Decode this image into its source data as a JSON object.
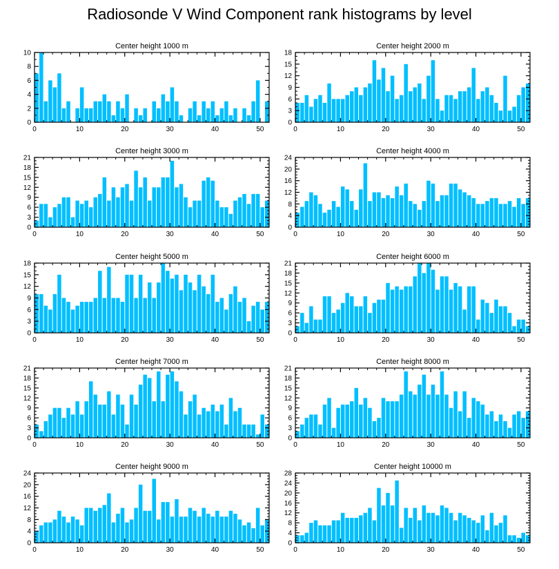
{
  "title": "Radiosonde V Wind Component rank histograms by level",
  "colors": {
    "bar": "#00bfff",
    "axis": "#000000"
  },
  "chart_data": [
    {
      "type": "bar",
      "title": "Center height 1000 m",
      "xlim": [
        0,
        52
      ],
      "ylim": [
        0,
        10
      ],
      "yticks": [
        0,
        2,
        4,
        6,
        8,
        10
      ],
      "xticks": [
        0,
        10,
        20,
        30,
        40,
        50
      ],
      "values": [
        7,
        10,
        3,
        6,
        5,
        7,
        2,
        3,
        0,
        2,
        5,
        2,
        2,
        3,
        3,
        4,
        3,
        1,
        3,
        2,
        4,
        0,
        2,
        1,
        2,
        0,
        3,
        2,
        4,
        3,
        5,
        3,
        1,
        0,
        2,
        3,
        1,
        3,
        2,
        3,
        1,
        2,
        3,
        1,
        2,
        0,
        2,
        1,
        3,
        6,
        0,
        3
      ]
    },
    {
      "type": "bar",
      "title": "Center height 2000 m",
      "xlim": [
        0,
        52
      ],
      "ylim": [
        0,
        18
      ],
      "yticks": [
        0,
        3,
        6,
        9,
        12,
        15,
        18
      ],
      "xticks": [
        0,
        10,
        20,
        30,
        40,
        50
      ],
      "values": [
        5,
        5,
        7,
        4,
        6,
        7,
        5,
        10,
        6,
        6,
        6,
        7,
        8,
        9,
        7,
        9,
        10,
        16,
        11,
        14,
        8,
        12,
        6,
        7,
        15,
        8,
        9,
        10,
        6,
        12,
        16,
        6,
        3,
        7,
        7,
        6,
        8,
        8,
        9,
        14,
        6,
        8,
        9,
        7,
        5,
        3,
        12,
        3,
        4,
        7,
        9,
        10
      ]
    },
    {
      "type": "bar",
      "title": "Center height 3000 m",
      "xlim": [
        0,
        52
      ],
      "ylim": [
        0,
        21
      ],
      "yticks": [
        0,
        3,
        6,
        9,
        12,
        15,
        18,
        21
      ],
      "xticks": [
        0,
        10,
        20,
        30,
        40,
        50
      ],
      "values": [
        2,
        7,
        7,
        3,
        6,
        7,
        9,
        9,
        3,
        8,
        7,
        8,
        6,
        9,
        10,
        15,
        8,
        12,
        9,
        12,
        13,
        8,
        17,
        12,
        15,
        8,
        12,
        12,
        15,
        15,
        20,
        12,
        13,
        9,
        6,
        8,
        8,
        14,
        15,
        14,
        8,
        6,
        6,
        4,
        8,
        9,
        10,
        7,
        10,
        10,
        6,
        8
      ]
    },
    {
      "type": "bar",
      "title": "Center height 4000 m",
      "xlim": [
        0,
        52
      ],
      "ylim": [
        0,
        24
      ],
      "yticks": [
        0,
        4,
        8,
        12,
        16,
        20,
        24
      ],
      "xticks": [
        0,
        10,
        20,
        30,
        40,
        50
      ],
      "values": [
        5,
        7,
        9,
        12,
        11,
        8,
        5,
        6,
        9,
        7,
        14,
        13,
        9,
        6,
        13,
        22,
        9,
        12,
        12,
        10,
        11,
        10,
        14,
        11,
        15,
        9,
        8,
        6,
        9,
        16,
        15,
        9,
        11,
        11,
        15,
        15,
        13,
        12,
        11,
        10,
        8,
        8,
        9,
        10,
        10,
        8,
        8,
        9,
        7,
        10,
        8,
        10
      ]
    },
    {
      "type": "bar",
      "title": "Center height 5000 m",
      "xlim": [
        0,
        52
      ],
      "ylim": [
        0,
        18
      ],
      "yticks": [
        0,
        3,
        6,
        9,
        12,
        15,
        18
      ],
      "xticks": [
        0,
        10,
        20,
        30,
        40,
        50
      ],
      "values": [
        10,
        10,
        7,
        6,
        10,
        15,
        9,
        8,
        6,
        7,
        8,
        8,
        8,
        9,
        16,
        9,
        17,
        9,
        9,
        8,
        15,
        15,
        9,
        15,
        9,
        13,
        9,
        13,
        18,
        16,
        14,
        15,
        11,
        15,
        13,
        11,
        15,
        12,
        10,
        15,
        8,
        9,
        6,
        10,
        12,
        8,
        9,
        3,
        7,
        8,
        6,
        8
      ]
    },
    {
      "type": "bar",
      "title": "Center height 6000 m",
      "xlim": [
        0,
        52
      ],
      "ylim": [
        0,
        21
      ],
      "yticks": [
        0,
        3,
        6,
        9,
        12,
        15,
        18,
        21
      ],
      "xticks": [
        0,
        10,
        20,
        30,
        40,
        50
      ],
      "values": [
        2,
        6,
        3,
        8,
        4,
        4,
        11,
        11,
        6,
        7,
        9,
        12,
        11,
        8,
        8,
        11,
        6,
        9,
        10,
        10,
        15,
        13,
        14,
        13,
        14,
        14,
        17,
        21,
        18,
        21,
        19,
        13,
        17,
        17,
        13,
        15,
        14,
        7,
        14,
        14,
        4,
        10,
        9,
        6,
        10,
        8,
        8,
        6,
        2,
        4,
        4,
        2
      ]
    },
    {
      "type": "bar",
      "title": "Center height 7000 m",
      "xlim": [
        0,
        52
      ],
      "ylim": [
        0,
        21
      ],
      "yticks": [
        0,
        3,
        6,
        9,
        12,
        15,
        18,
        21
      ],
      "xticks": [
        0,
        10,
        20,
        30,
        40,
        50
      ],
      "values": [
        4,
        2,
        5,
        7,
        9,
        9,
        6,
        9,
        7,
        11,
        7,
        11,
        17,
        13,
        10,
        10,
        14,
        7,
        13,
        10,
        4,
        13,
        10,
        16,
        19,
        18,
        11,
        20,
        11,
        19,
        20,
        17,
        14,
        7,
        11,
        13,
        7,
        9,
        8,
        10,
        8,
        10,
        4,
        12,
        8,
        9,
        4,
        4,
        4,
        1,
        7,
        4
      ]
    },
    {
      "type": "bar",
      "title": "Center height 8000 m",
      "xlim": [
        0,
        52
      ],
      "ylim": [
        0,
        21
      ],
      "yticks": [
        0,
        3,
        6,
        9,
        12,
        15,
        18,
        21
      ],
      "xticks": [
        0,
        10,
        20,
        30,
        40,
        50
      ],
      "values": [
        2,
        4,
        6,
        7,
        7,
        4,
        10,
        12,
        3,
        9,
        10,
        10,
        11,
        15,
        10,
        12,
        9,
        5,
        6,
        12,
        11,
        11,
        11,
        13,
        20,
        14,
        13,
        16,
        19,
        13,
        16,
        13,
        20,
        13,
        9,
        14,
        8,
        14,
        6,
        12,
        11,
        10,
        7,
        8,
        5,
        7,
        5,
        3,
        7,
        8,
        6,
        8
      ]
    },
    {
      "type": "bar",
      "title": "Center height 9000 m",
      "xlim": [
        0,
        52
      ],
      "ylim": [
        0,
        24
      ],
      "yticks": [
        0,
        4,
        8,
        12,
        16,
        20,
        24
      ],
      "xticks": [
        0,
        10,
        20,
        30,
        40,
        50
      ],
      "values": [
        4,
        6,
        7,
        7,
        8,
        11,
        9,
        7,
        9,
        8,
        6,
        12,
        12,
        11,
        12,
        13,
        17,
        7,
        10,
        12,
        7,
        8,
        12,
        20,
        11,
        11,
        22,
        8,
        14,
        14,
        9,
        15,
        9,
        9,
        12,
        11,
        9,
        12,
        10,
        9,
        11,
        9,
        9,
        11,
        10,
        8,
        6,
        7,
        5,
        12,
        6,
        8
      ]
    },
    {
      "type": "bar",
      "title": "Center height 10000 m",
      "xlim": [
        0,
        52
      ],
      "ylim": [
        0,
        28
      ],
      "yticks": [
        0,
        4,
        8,
        12,
        16,
        20,
        24,
        28
      ],
      "xticks": [
        0,
        10,
        20,
        30,
        40,
        50
      ],
      "values": [
        3,
        3,
        4,
        8,
        9,
        7,
        7,
        7,
        9,
        9,
        12,
        10,
        10,
        10,
        11,
        12,
        14,
        9,
        22,
        15,
        20,
        15,
        25,
        6,
        14,
        10,
        14,
        9,
        15,
        12,
        12,
        11,
        15,
        14,
        12,
        9,
        12,
        11,
        10,
        9,
        8,
        11,
        5,
        12,
        7,
        8,
        11,
        3,
        3,
        2,
        4,
        3
      ]
    }
  ]
}
